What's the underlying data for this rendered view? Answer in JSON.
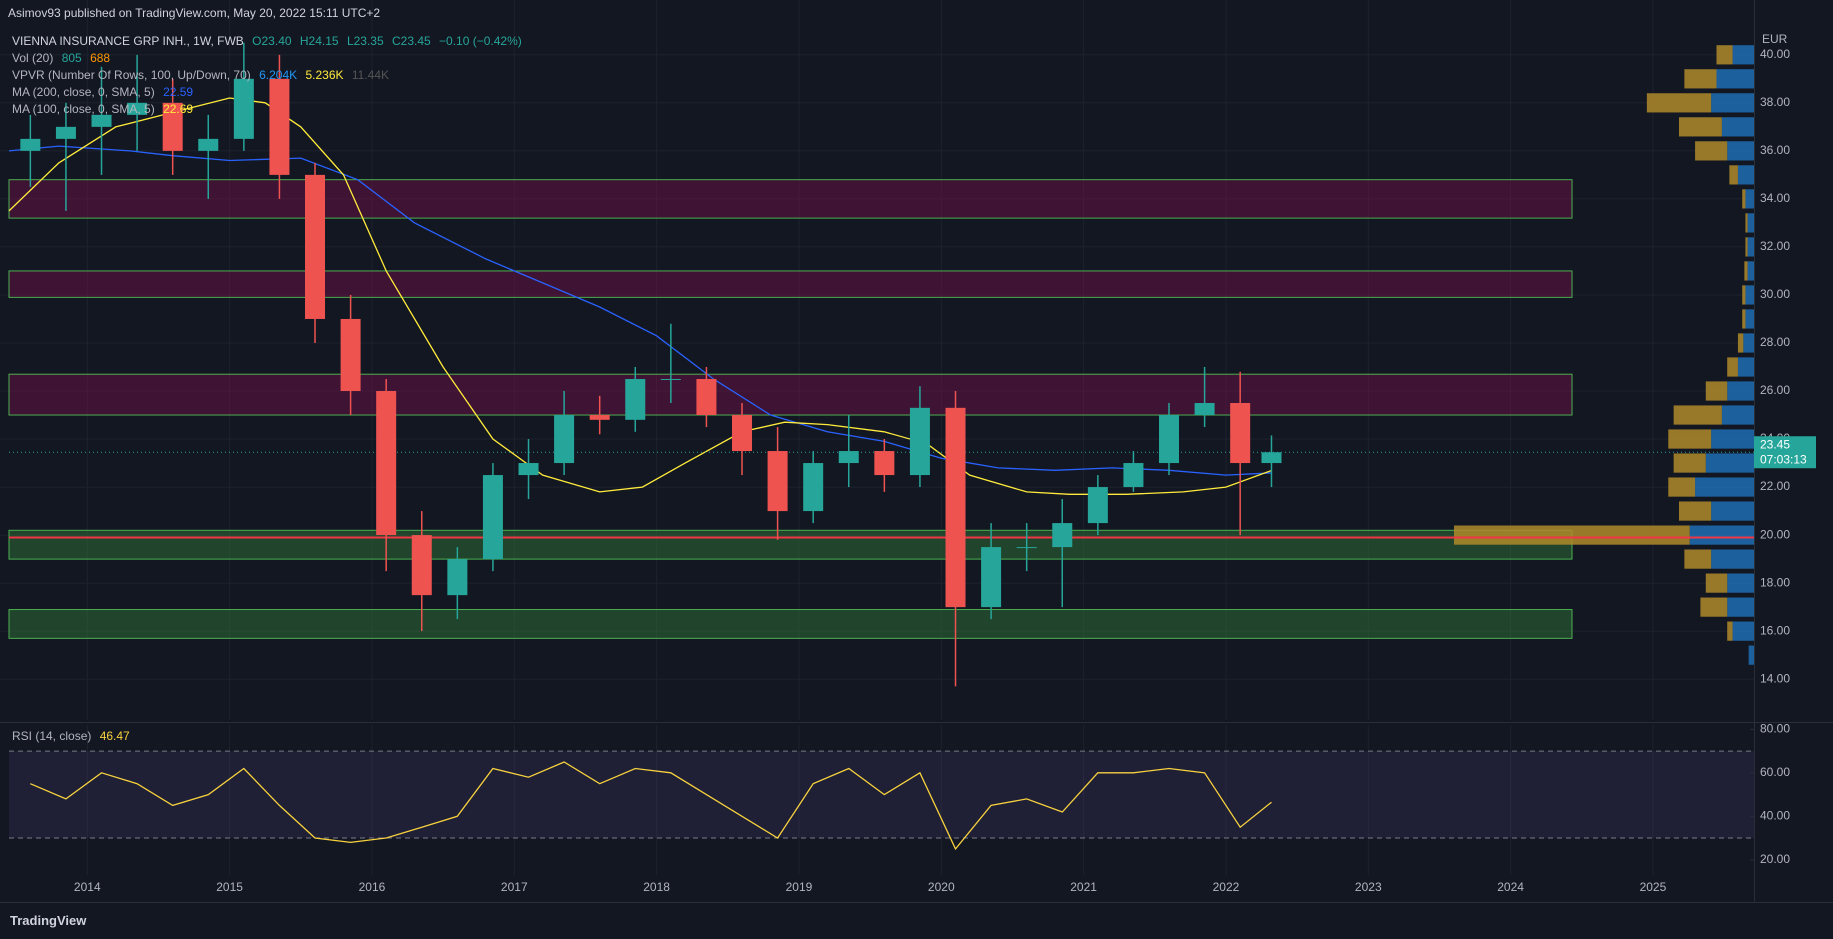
{
  "attribution": "Asimov93 published on TradingView.com, May 20, 2022 15:11 UTC+2",
  "legend": {
    "symbol": "VIENNA INSURANCE GRP INH., 1W, FWB",
    "open": "O23.40",
    "high": "H24.15",
    "low": "L23.35",
    "close": "C23.45",
    "change": "−0.10 (−0.42%)",
    "vol_name": "Vol (20)",
    "vol_values": [
      "805",
      "688"
    ],
    "vpvr_name": "VPVR (Number Of Rows, 100, Up/Down, 70)",
    "vpvr_values": [
      "6.204K",
      "5.236K",
      "11.44K"
    ]
  },
  "currency": "EUR",
  "countdown": "07:03:13",
  "brand": "TradingView",
  "chart_data": [
    {
      "type": "candlestick",
      "x": [
        2013.6,
        2013.85,
        2014.1,
        2014.35,
        2014.6,
        2014.85,
        2015.1,
        2015.35,
        2015.6,
        2015.85,
        2016.1,
        2016.35,
        2016.6,
        2016.85,
        2017.1,
        2017.35,
        2017.6,
        2017.85,
        2018.1,
        2018.35,
        2018.6,
        2018.85,
        2019.1,
        2019.35,
        2019.6,
        2019.85,
        2020.1,
        2020.35,
        2020.6,
        2020.85,
        2021.1,
        2021.35,
        2021.6,
        2021.85,
        2022.1,
        2022.32
      ],
      "open": [
        36,
        36.5,
        37,
        37.5,
        38,
        36,
        36.5,
        39,
        35,
        29,
        26,
        20,
        17.5,
        19,
        22.5,
        23,
        25,
        24.8,
        26.5,
        26.5,
        25,
        23.5,
        21,
        23,
        23.5,
        22.5,
        25.3,
        17,
        19.5,
        19.5,
        20.5,
        22,
        23,
        25,
        25.5,
        23
      ],
      "high": [
        37.5,
        38,
        39.5,
        40,
        39,
        37.5,
        40.5,
        40,
        35.5,
        30,
        26.5,
        21,
        19.5,
        23,
        24,
        26,
        25.8,
        27,
        28.8,
        27,
        25.5,
        24.5,
        23.5,
        25,
        24,
        26.2,
        26,
        20.5,
        20.5,
        21.5,
        22.5,
        23.5,
        25.5,
        27,
        26.8,
        24.15
      ],
      "low": [
        34.5,
        33.5,
        35,
        36,
        35,
        34,
        36,
        34,
        28,
        25,
        18.5,
        16,
        16.5,
        18.5,
        21.5,
        22.5,
        24.2,
        24.3,
        25.5,
        24.5,
        22.5,
        19.8,
        20.5,
        22,
        21.8,
        22,
        13.7,
        16.5,
        18.5,
        17,
        20,
        21.8,
        22.5,
        24.5,
        20,
        22
      ],
      "close": [
        36.5,
        37,
        37.5,
        38,
        36,
        36.5,
        39,
        35,
        29,
        26,
        20,
        17.5,
        19,
        22.5,
        23,
        25,
        24.8,
        26.5,
        26.5,
        25,
        23.5,
        21,
        23,
        23.5,
        22.5,
        25.3,
        17,
        19.5,
        19.5,
        20.5,
        22,
        23,
        25,
        25.5,
        23,
        23.45
      ],
      "up_color": "#26a69a",
      "down_color": "#ef5350",
      "series": [
        {
          "name": "MA (200, close, 0, SMA, 5)",
          "color": "#2962ff",
          "last_value": 22.59,
          "x": [
            2013.45,
            2013.8,
            2014.3,
            2014.6,
            2015.0,
            2015.5,
            2015.9,
            2016.3,
            2016.8,
            2017.2,
            2017.6,
            2018.0,
            2018.4,
            2018.8,
            2019.2,
            2019.6,
            2020.0,
            2020.4,
            2020.8,
            2021.2,
            2021.6,
            2022.0,
            2022.32
          ],
          "values": [
            36,
            36.2,
            36,
            35.8,
            35.6,
            35.7,
            34.8,
            33,
            31.5,
            30.5,
            29.5,
            28.3,
            26.5,
            25,
            24.3,
            23.9,
            23.2,
            22.8,
            22.7,
            22.8,
            22.7,
            22.5,
            22.59
          ]
        },
        {
          "name": "MA (100, close, 0, SMA, 5)",
          "color": "#ffeb3b",
          "last_value": 22.69,
          "x": [
            2013.45,
            2013.8,
            2014.2,
            2014.6,
            2015.0,
            2015.25,
            2015.5,
            2015.8,
            2016.1,
            2016.5,
            2016.85,
            2017.2,
            2017.6,
            2017.9,
            2018.2,
            2018.6,
            2018.9,
            2019.2,
            2019.6,
            2019.9,
            2020.2,
            2020.6,
            2020.9,
            2021.3,
            2021.7,
            2022.0,
            2022.32
          ],
          "values": [
            33.5,
            35.5,
            37,
            37.6,
            38.2,
            38,
            37,
            35,
            31,
            27,
            24,
            22.5,
            21.8,
            22,
            23,
            24.3,
            24.7,
            24.6,
            24.3,
            23.8,
            22.5,
            21.8,
            21.7,
            21.7,
            21.8,
            22,
            22.69
          ]
        }
      ],
      "zones": [
        {
          "low": 33.2,
          "high": 34.8,
          "color": "rgba(136,14,79,0.38)"
        },
        {
          "low": 29.9,
          "high": 31.0,
          "color": "rgba(136,14,79,0.38)"
        },
        {
          "low": 25.0,
          "high": 26.7,
          "color": "rgba(136,14,79,0.38)"
        },
        {
          "low": 19.0,
          "high": 20.2,
          "color": "rgba(56,142,60,0.38)"
        },
        {
          "low": 15.7,
          "high": 16.9,
          "color": "rgba(56,142,60,0.38)"
        }
      ],
      "zone_border": "#4caf50",
      "level_line": {
        "value": 19.9,
        "color": "#f23645"
      },
      "last_price": 23.45,
      "volume_profile": {
        "levels": [
          15,
          16,
          17,
          18,
          19,
          20,
          21,
          22,
          23,
          24,
          25,
          26,
          27,
          28,
          29,
          30,
          31,
          32,
          33,
          34,
          35,
          36,
          37,
          38,
          39,
          40
        ],
        "up": [
          5,
          20,
          25,
          25,
          40,
          60,
          40,
          55,
          45,
          40,
          30,
          25,
          15,
          10,
          8,
          8,
          6,
          6,
          6,
          8,
          15,
          25,
          30,
          40,
          35,
          20
        ],
        "down": [
          0,
          5,
          25,
          20,
          25,
          220,
          30,
          25,
          30,
          40,
          45,
          20,
          10,
          5,
          3,
          3,
          3,
          2,
          2,
          3,
          8,
          30,
          40,
          60,
          30,
          15
        ],
        "up_color": "#1e6fb4",
        "down_color": "#b08a2a"
      },
      "xlim": [
        2013.45,
        2025.71
      ],
      "xticks": [
        2014,
        2015,
        2016,
        2017,
        2018,
        2019,
        2020,
        2021,
        2022,
        2023,
        2024,
        2025
      ],
      "ylim": [
        12.3,
        41.2
      ],
      "yticks": [
        {
          "value": 14,
          "label": "14.00"
        },
        {
          "value": 16,
          "label": "16.00"
        },
        {
          "value": 18,
          "label": "18.00"
        },
        {
          "value": 20,
          "label": "20.00"
        },
        {
          "value": 22,
          "label": "22.00"
        },
        {
          "value": 24,
          "label": "24.00"
        },
        {
          "value": 26,
          "label": "26.00"
        },
        {
          "value": 28,
          "label": "28.00"
        },
        {
          "value": 30,
          "label": "30.00"
        },
        {
          "value": 32,
          "label": "32.00"
        },
        {
          "value": 34,
          "label": "34.00"
        },
        {
          "value": 36,
          "label": "36.00"
        },
        {
          "value": 38,
          "label": "38.00"
        },
        {
          "value": 40,
          "label": "40.00"
        }
      ],
      "grid": true
    },
    {
      "type": "line",
      "title": "RSI (14, close)",
      "last_value": 46.47,
      "series": [
        {
          "color": "#f7d23e",
          "values": [
            55,
            48,
            60,
            55,
            45,
            50,
            62,
            45,
            30,
            28,
            30,
            35,
            40,
            62,
            58,
            65,
            55,
            62,
            60,
            50,
            40,
            30,
            55,
            62,
            50,
            60,
            25,
            45,
            48,
            42,
            60,
            60,
            62,
            60,
            35,
            46.47
          ]
        }
      ],
      "bands": [
        30,
        70
      ],
      "band_color": "rgba(126,87,194,0.12)",
      "ylim": [
        13,
        82
      ],
      "yticks": [
        {
          "value": 20,
          "label": "20.00"
        },
        {
          "value": 40,
          "label": "40.00"
        },
        {
          "value": 60,
          "label": "60.00"
        },
        {
          "value": 80,
          "label": "80.00"
        }
      ],
      "grid": true
    }
  ]
}
